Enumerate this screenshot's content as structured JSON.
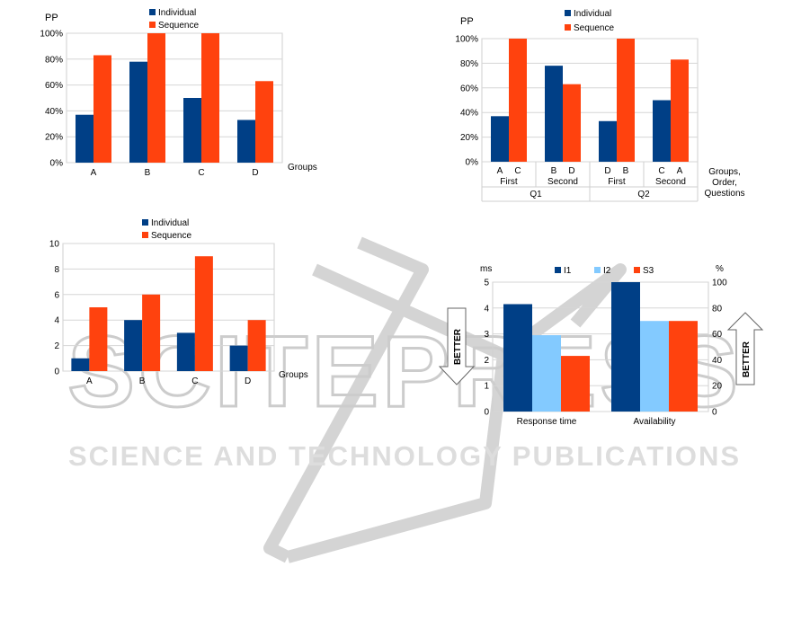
{
  "watermark": {
    "big": "SCITEPRESS",
    "small": "SCIENCE AND TECHNOLOGY PUBLICATIONS",
    "color": "#d0d0d0"
  },
  "colors": {
    "individual": "#003f86",
    "sequence": "#ff420e",
    "I1": "#003f86",
    "I2": "#83caff",
    "S3": "#ff420e"
  },
  "chart_data": [
    {
      "id": "chart1",
      "type": "bar",
      "ylabel": "PP",
      "xlabel": "Groups",
      "categories": [
        "A",
        "B",
        "C",
        "D"
      ],
      "ylim": [
        0,
        1
      ],
      "yticks": [
        "0%",
        "20%",
        "40%",
        "60%",
        "80%",
        "100%"
      ],
      "series": [
        {
          "name": "Individual",
          "values": [
            0.37,
            0.78,
            0.5,
            0.33
          ]
        },
        {
          "name": "Sequence",
          "values": [
            0.83,
            1.0,
            1.0,
            0.63
          ]
        }
      ],
      "legend": "top-center",
      "grid": true
    },
    {
      "id": "chart2",
      "type": "bar",
      "ylabel": "PP",
      "xlabel_lines": [
        "Groups,",
        "Order,",
        "Questions"
      ],
      "category_pairs": [
        [
          "A",
          "C"
        ],
        [
          "B",
          "D"
        ],
        [
          "D",
          "B"
        ],
        [
          "C",
          "A"
        ]
      ],
      "order_labels": [
        "First",
        "Second",
        "First",
        "Second"
      ],
      "question_labels": [
        "Q1",
        "Q2"
      ],
      "ylim": [
        0,
        1
      ],
      "yticks": [
        "0%",
        "20%",
        "40%",
        "60%",
        "80%",
        "100%"
      ],
      "series": [
        {
          "name": "Individual",
          "values": [
            0.37,
            0.78,
            0.33,
            0.5
          ]
        },
        {
          "name": "Sequence",
          "values": [
            1.0,
            0.63,
            1.0,
            0.83
          ]
        }
      ],
      "legend": "top-center",
      "grid": true
    },
    {
      "id": "chart3",
      "type": "bar",
      "xlabel": "Groups",
      "categories": [
        "A",
        "B",
        "C",
        "D"
      ],
      "ylim": [
        0,
        10
      ],
      "yticks": [
        "0",
        "2",
        "4",
        "6",
        "8",
        "10"
      ],
      "series": [
        {
          "name": "Individual",
          "values": [
            1,
            4,
            3,
            2
          ]
        },
        {
          "name": "Sequence",
          "values": [
            5,
            6,
            9,
            4
          ]
        }
      ],
      "legend": "top-center",
      "grid": true
    },
    {
      "id": "chart4",
      "type": "bar",
      "left_unit": "ms",
      "right_unit": "%",
      "categories": [
        "Response time",
        "Availability"
      ],
      "ylim_left": [
        0,
        5
      ],
      "ylim_right": [
        0,
        100
      ],
      "yticks_left": [
        "0",
        "1",
        "2",
        "3",
        "4",
        "5"
      ],
      "yticks_right": [
        "0",
        "20",
        "40",
        "60",
        "80",
        "100"
      ],
      "series": [
        {
          "name": "I1",
          "values": [
            4.15,
            100
          ]
        },
        {
          "name": "I2",
          "values": [
            2.95,
            70
          ]
        },
        {
          "name": "S3",
          "values": [
            2.15,
            70
          ]
        }
      ],
      "axis_by_category": [
        "left",
        "right"
      ],
      "annotations": [
        "BETTER",
        "BETTER"
      ],
      "legend": "top-center",
      "grid": true
    }
  ]
}
